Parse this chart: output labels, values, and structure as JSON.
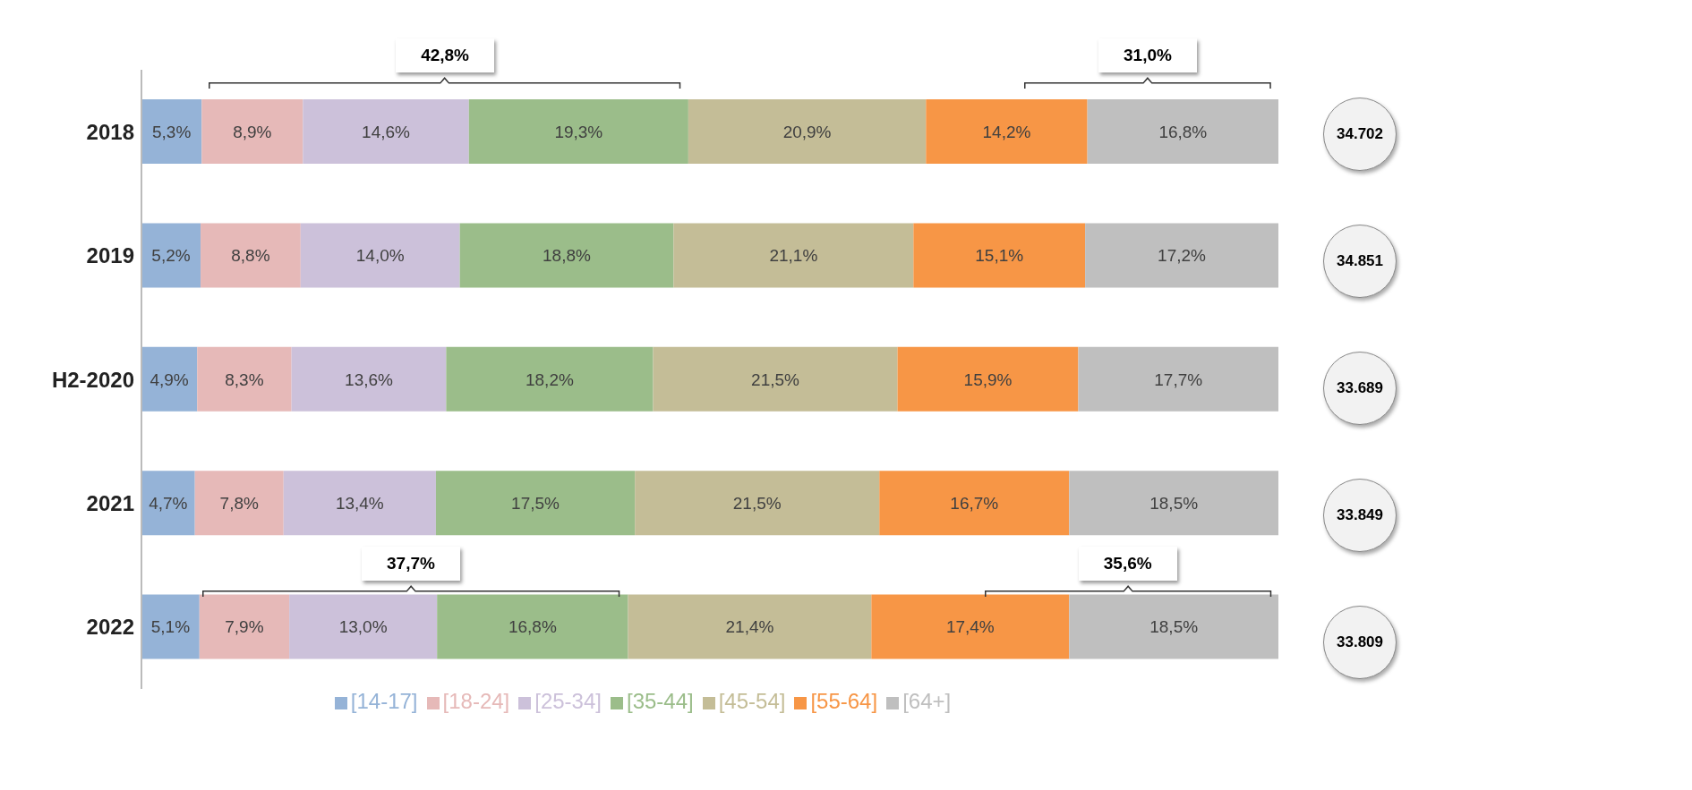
{
  "chart_data": {
    "type": "bar",
    "orientation": "horizontal",
    "stacked": true,
    "categories": [
      "2018",
      "2019",
      "H2-2020",
      "2021",
      "2022"
    ],
    "xlim": [
      0,
      100
    ],
    "tick_labels": "y",
    "legend": "bottom",
    "grid": false,
    "series": [
      {
        "name": "[14-17]",
        "color": "#95b3d7",
        "values": [
          5.3,
          5.2,
          4.9,
          4.7,
          5.1
        ],
        "value_labels": [
          "5,3%",
          "5,2%",
          "4,9%",
          "4,7%",
          "5,1%"
        ]
      },
      {
        "name": "[18-24]",
        "color": "#e6b9b8",
        "values": [
          8.9,
          8.8,
          8.3,
          7.8,
          7.9
        ],
        "value_labels": [
          "8,9%",
          "8,8%",
          "8,3%",
          "7,8%",
          "7,9%"
        ]
      },
      {
        "name": "[25-34]",
        "color": "#ccc1da",
        "values": [
          14.6,
          14.0,
          13.6,
          13.4,
          13.0
        ],
        "value_labels": [
          "14,6%",
          "14,0%",
          "13,6%",
          "13,4%",
          "13,0%"
        ]
      },
      {
        "name": "[35-44]",
        "color": "#9bbd8a",
        "values": [
          19.3,
          18.8,
          18.2,
          17.5,
          16.8
        ],
        "value_labels": [
          "19,3%",
          "18,8%",
          "18,2%",
          "17,5%",
          "16,8%"
        ]
      },
      {
        "name": "[45-54]",
        "color": "#c4bd97",
        "values": [
          20.9,
          21.1,
          21.5,
          21.5,
          21.4
        ],
        "value_labels": [
          "20,9%",
          "21,1%",
          "21,5%",
          "21,5%",
          "21,4%"
        ]
      },
      {
        "name": "[55-64]",
        "color": "#f79646",
        "values": [
          14.2,
          15.1,
          15.9,
          16.7,
          17.4
        ],
        "value_labels": [
          "14,2%",
          "15,1%",
          "15,9%",
          "16,7%",
          "17,4%"
        ]
      },
      {
        "name": "[64+]",
        "color": "#bfbfbf",
        "values": [
          16.8,
          17.2,
          17.7,
          18.5,
          18.5
        ],
        "value_labels": [
          "16,8%",
          "17,2%",
          "17,7%",
          "18,5%",
          "18,5%"
        ]
      }
    ],
    "annotations": [
      "42,8%",
      "31,0%",
      "37,7%",
      "35,6%",
      "34.702",
      "34.851",
      "33.689",
      "33.849",
      "33.809"
    ]
  }
}
